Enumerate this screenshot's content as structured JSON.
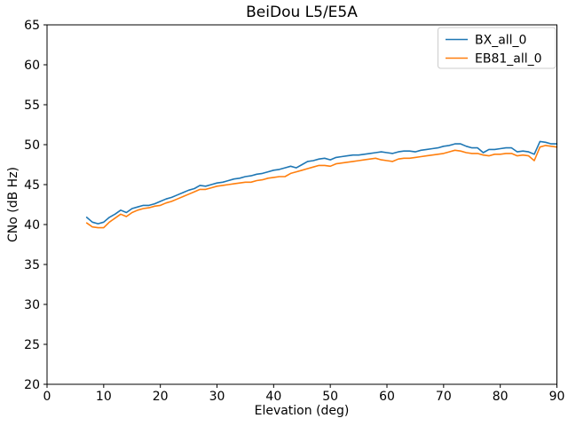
{
  "figure": {
    "background": "#ffffff",
    "spine_color": "#000000",
    "legend_border_color": "#cccccc",
    "legend_background": "#ffffff"
  },
  "chart_data": {
    "type": "line",
    "title": "BeiDou L5/E5A",
    "xlabel": "Elevation (deg)",
    "ylabel": "CNo (dB Hz)",
    "xlim": [
      0,
      90
    ],
    "ylim": [
      20,
      65
    ],
    "xticks": [
      0,
      10,
      20,
      30,
      40,
      50,
      60,
      70,
      80,
      90
    ],
    "yticks": [
      20,
      25,
      30,
      35,
      40,
      45,
      50,
      55,
      60,
      65
    ],
    "grid": false,
    "legend_position": "upper right",
    "x": [
      7,
      8,
      9,
      10,
      11,
      12,
      13,
      14,
      15,
      16,
      17,
      18,
      19,
      20,
      21,
      22,
      23,
      24,
      25,
      26,
      27,
      28,
      29,
      30,
      31,
      32,
      33,
      34,
      35,
      36,
      37,
      38,
      39,
      40,
      41,
      42,
      43,
      44,
      45,
      46,
      47,
      48,
      49,
      50,
      51,
      52,
      53,
      54,
      55,
      56,
      57,
      58,
      59,
      60,
      61,
      62,
      63,
      64,
      65,
      66,
      67,
      68,
      69,
      70,
      71,
      72,
      73,
      74,
      75,
      76,
      77,
      78,
      79,
      80,
      81,
      82,
      83,
      84,
      85,
      86,
      87,
      88,
      89,
      90
    ],
    "series": [
      {
        "name": "BX_all_0",
        "color": "#1f77b4",
        "values": [
          40.9,
          40.3,
          40.1,
          40.3,
          40.9,
          41.3,
          41.8,
          41.5,
          42.0,
          42.2,
          42.4,
          42.4,
          42.6,
          42.9,
          43.2,
          43.4,
          43.7,
          44.0,
          44.3,
          44.5,
          44.9,
          44.8,
          45.0,
          45.2,
          45.3,
          45.5,
          45.7,
          45.8,
          46.0,
          46.1,
          46.3,
          46.4,
          46.6,
          46.8,
          46.9,
          47.1,
          47.3,
          47.1,
          47.5,
          47.9,
          48.0,
          48.2,
          48.3,
          48.1,
          48.4,
          48.5,
          48.6,
          48.7,
          48.7,
          48.8,
          48.9,
          49.0,
          49.1,
          49.0,
          48.9,
          49.1,
          49.2,
          49.2,
          49.1,
          49.3,
          49.4,
          49.5,
          49.6,
          49.8,
          49.9,
          50.1,
          50.1,
          49.8,
          49.6,
          49.6,
          49.0,
          49.4,
          49.4,
          49.5,
          49.6,
          49.6,
          49.1,
          49.2,
          49.1,
          48.8,
          50.4,
          50.3,
          50.1,
          50.1
        ]
      },
      {
        "name": "EB81_all_0",
        "color": "#ff7f0e",
        "values": [
          40.2,
          39.7,
          39.6,
          39.6,
          40.3,
          40.8,
          41.3,
          41.0,
          41.5,
          41.8,
          42.0,
          42.1,
          42.3,
          42.4,
          42.7,
          42.9,
          43.2,
          43.5,
          43.8,
          44.1,
          44.4,
          44.4,
          44.6,
          44.8,
          44.9,
          45.0,
          45.1,
          45.2,
          45.3,
          45.3,
          45.5,
          45.6,
          45.8,
          45.9,
          46.0,
          46.0,
          46.4,
          46.6,
          46.8,
          47.0,
          47.2,
          47.4,
          47.4,
          47.3,
          47.6,
          47.7,
          47.8,
          47.9,
          48.0,
          48.1,
          48.2,
          48.3,
          48.1,
          48.0,
          47.9,
          48.2,
          48.3,
          48.3,
          48.4,
          48.5,
          48.6,
          48.7,
          48.8,
          48.9,
          49.1,
          49.3,
          49.2,
          49.0,
          48.9,
          48.9,
          48.7,
          48.6,
          48.8,
          48.8,
          48.9,
          48.9,
          48.6,
          48.7,
          48.6,
          48.0,
          49.7,
          49.9,
          49.8,
          49.7
        ]
      }
    ]
  }
}
